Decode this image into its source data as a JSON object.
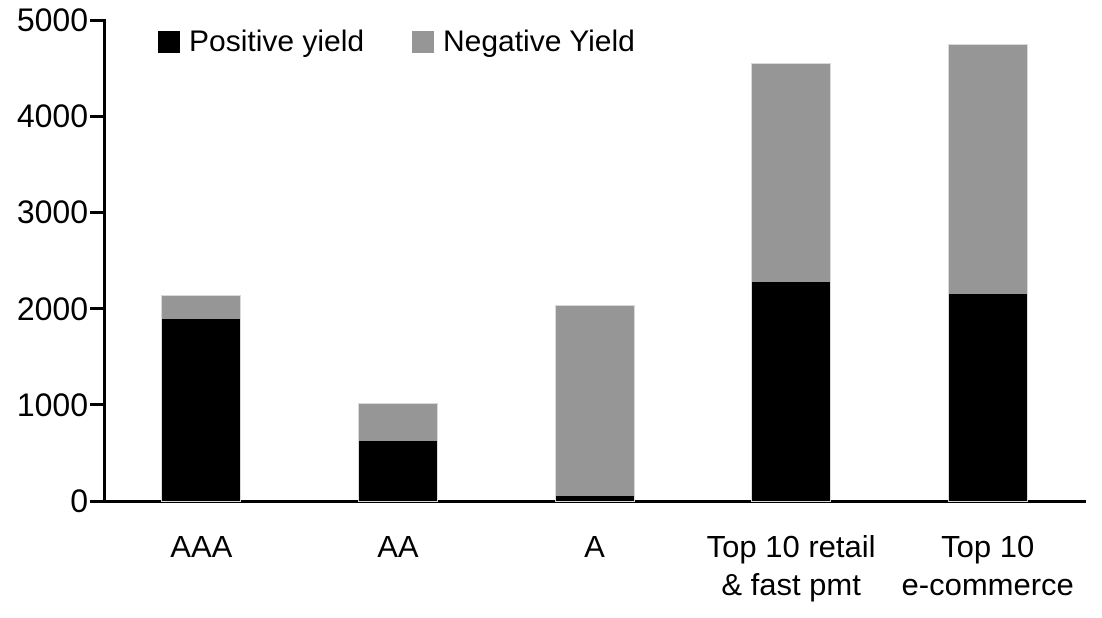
{
  "chart_data": {
    "type": "bar",
    "stacked": true,
    "title": "",
    "xlabel": "",
    "ylabel": "",
    "categories": [
      "AAA",
      "AA",
      "A",
      "Top 10 retail\n& fast pmt",
      "Top 10\ne-commerce"
    ],
    "series": [
      {
        "name": "Positive yield",
        "color": "#000000",
        "values": [
          1890,
          620,
          50,
          2280,
          2150
        ]
      },
      {
        "name": "Negative Yield",
        "color": "#969696",
        "values": [
          240,
          390,
          1980,
          2260,
          2590
        ]
      }
    ],
    "ylim": [
      0,
      5000
    ],
    "yticks": [
      0,
      1000,
      2000,
      3000,
      4000,
      5000
    ],
    "grid": false,
    "legend_position": "top-left-inside"
  },
  "legend": {
    "positive_label": "Positive yield",
    "negative_label": "Negative Yield"
  },
  "colors": {
    "positive": "#000000",
    "negative": "#969696",
    "axis": "#000000",
    "background": "#ffffff"
  }
}
